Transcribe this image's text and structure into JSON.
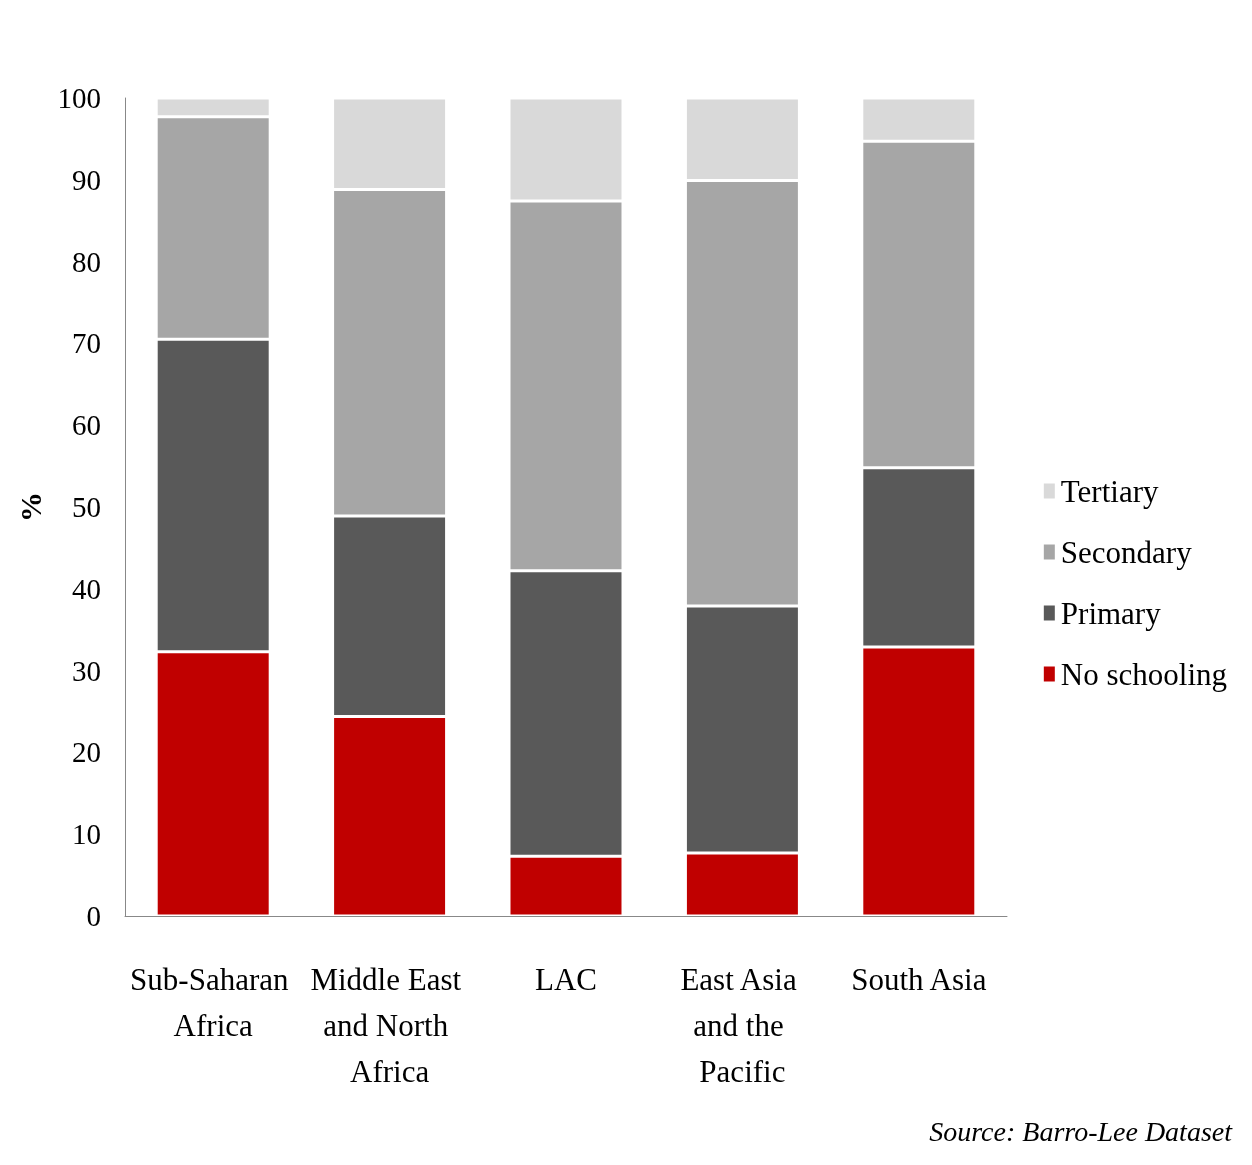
{
  "chart_data": {
    "type": "bar",
    "stacked": true,
    "ylabel": "%",
    "categories": [
      "Sub-Saharan Africa",
      "Middle East and North Africa",
      "LAC",
      "East Asia and the Pacific",
      "South Asia"
    ],
    "series": [
      {
        "name": "No schooling",
        "color": "#c00000",
        "values": [
          32.3,
          24.4,
          7.3,
          7.7,
          32.9
        ]
      },
      {
        "name": "Primary",
        "color": "#595959",
        "values": [
          38.2,
          24.5,
          34.9,
          30.2,
          21.9
        ]
      },
      {
        "name": "Secondary",
        "color": "#a6a6a6",
        "values": [
          27.2,
          39.9,
          45.2,
          52.0,
          39.9
        ]
      },
      {
        "name": "Tertiary",
        "color": "#d9d9d9",
        "values": [
          2.3,
          11.2,
          12.6,
          10.1,
          5.3
        ]
      }
    ],
    "ylim": [
      0,
      100
    ],
    "yticks": [
      0,
      10,
      20,
      30,
      40,
      50,
      60,
      70,
      80,
      90,
      100
    ],
    "grid": false,
    "legend": "right",
    "annotations": [
      "Source: Barro-Lee Dataset"
    ]
  }
}
